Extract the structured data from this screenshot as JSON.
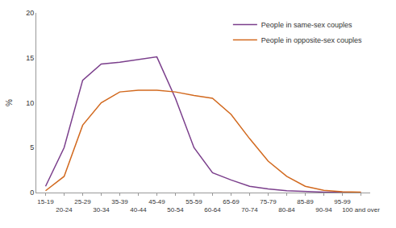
{
  "chart_data": {
    "type": "line",
    "categories": [
      "15-19",
      "20-24",
      "25-29",
      "30-34",
      "35-39",
      "40-44",
      "45-49",
      "50-54",
      "55-59",
      "60-64",
      "65-69",
      "70-74",
      "75-79",
      "80-84",
      "85-89",
      "90-94",
      "95-99",
      "100 and over"
    ],
    "series": [
      {
        "name": "People in same-sex couples",
        "color": "#7B3F8C",
        "values": [
          0.7,
          5.0,
          12.5,
          14.3,
          14.5,
          14.8,
          15.1,
          10.5,
          5.0,
          2.2,
          1.4,
          0.7,
          0.4,
          0.2,
          0.1,
          0.05,
          0.02,
          0.01
        ]
      },
      {
        "name": "People in opposite-sex couples",
        "color": "#D2691E",
        "values": [
          0.2,
          1.8,
          7.5,
          10.0,
          11.2,
          11.4,
          11.4,
          11.2,
          10.8,
          10.5,
          8.7,
          6.0,
          3.5,
          1.8,
          0.7,
          0.25,
          0.1,
          0.04
        ]
      }
    ],
    "ylabel": "%",
    "ylim": [
      0,
      20
    ],
    "yticks": [
      0,
      5,
      10,
      15,
      20
    ],
    "grid": false,
    "legend": "upper right"
  }
}
